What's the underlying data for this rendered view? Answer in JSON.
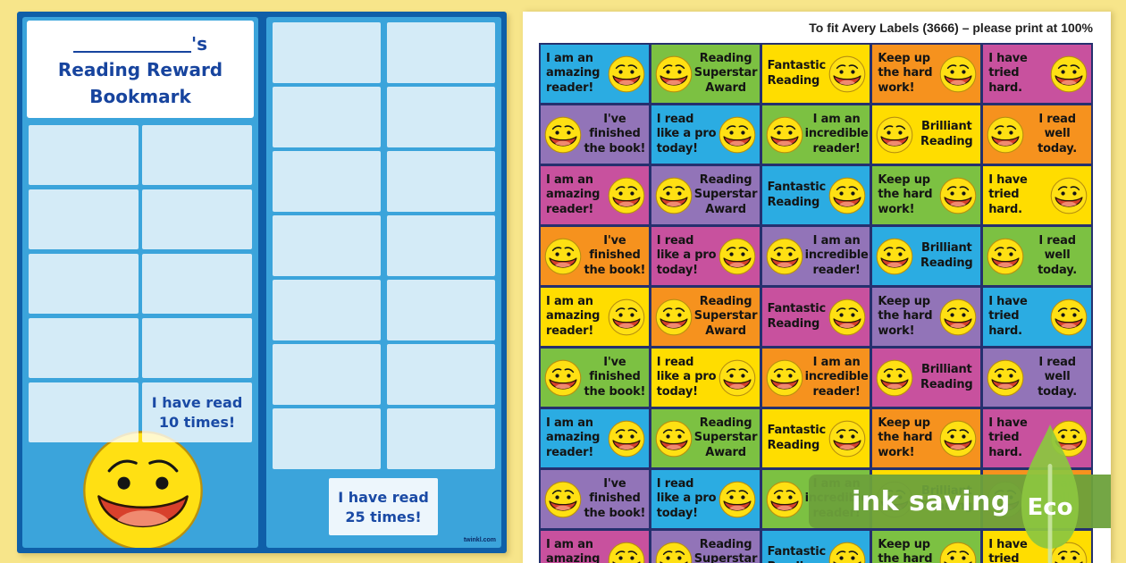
{
  "page": {
    "background": "#f7e58a"
  },
  "bookmark": {
    "name_suffix": "'s",
    "title_line1": "Reading Reward",
    "title_line2": "Bookmark",
    "milestone_10": [
      "I have read",
      "10 times!"
    ],
    "milestone_25": [
      "I have read",
      "25 times!"
    ],
    "watermark": "twinkl.com",
    "left_grid": {
      "rows": 5,
      "cols": 2
    },
    "right_grid": {
      "rows": 7,
      "cols": 2
    },
    "panel_color": "#3ba4db",
    "frame_color": "#0f5fa8",
    "text_color": "#17449e"
  },
  "sheet": {
    "header": "To fit Avery Labels (3666) – please print at 100%",
    "grid": {
      "rows": 9,
      "cols": 5
    },
    "color_cycle": [
      "#2bace2",
      "#7cc142",
      "#ffdd00",
      "#f6921e",
      "#c8519e",
      "#9274b8"
    ],
    "border_color": "#25306e",
    "row_templates": {
      "odd": [
        {
          "lines": [
            "I am an",
            "amazing",
            "reader!"
          ],
          "smiley": "right"
        },
        {
          "lines": [
            "Reading",
            "Superstar",
            "Award"
          ],
          "smiley": "left"
        },
        {
          "lines": [
            "Fantastic",
            "Reading"
          ],
          "smiley": "right"
        },
        {
          "lines": [
            "Keep up",
            "the hard",
            "work!"
          ],
          "smiley": "right"
        },
        {
          "lines": [
            "I have",
            "tried",
            "hard."
          ],
          "smiley": "right"
        }
      ],
      "even": [
        {
          "lines": [
            "I've",
            "finished",
            "the book!"
          ],
          "smiley": "left"
        },
        {
          "lines": [
            "I read",
            "like a pro",
            "today!"
          ],
          "smiley": "right"
        },
        {
          "lines": [
            "I am an",
            "incredible",
            "reader!"
          ],
          "smiley": "left"
        },
        {
          "lines": [
            "Brilliant",
            "Reading"
          ],
          "smiley": "left"
        },
        {
          "lines": [
            "I read",
            "well",
            "today."
          ],
          "smiley": "left"
        }
      ]
    }
  },
  "eco": {
    "banner_text": "ink saving",
    "leaf_text": "Eco",
    "banner_color": "rgba(109,161,59,0.95)",
    "leaf_color": "#8cc63f"
  }
}
